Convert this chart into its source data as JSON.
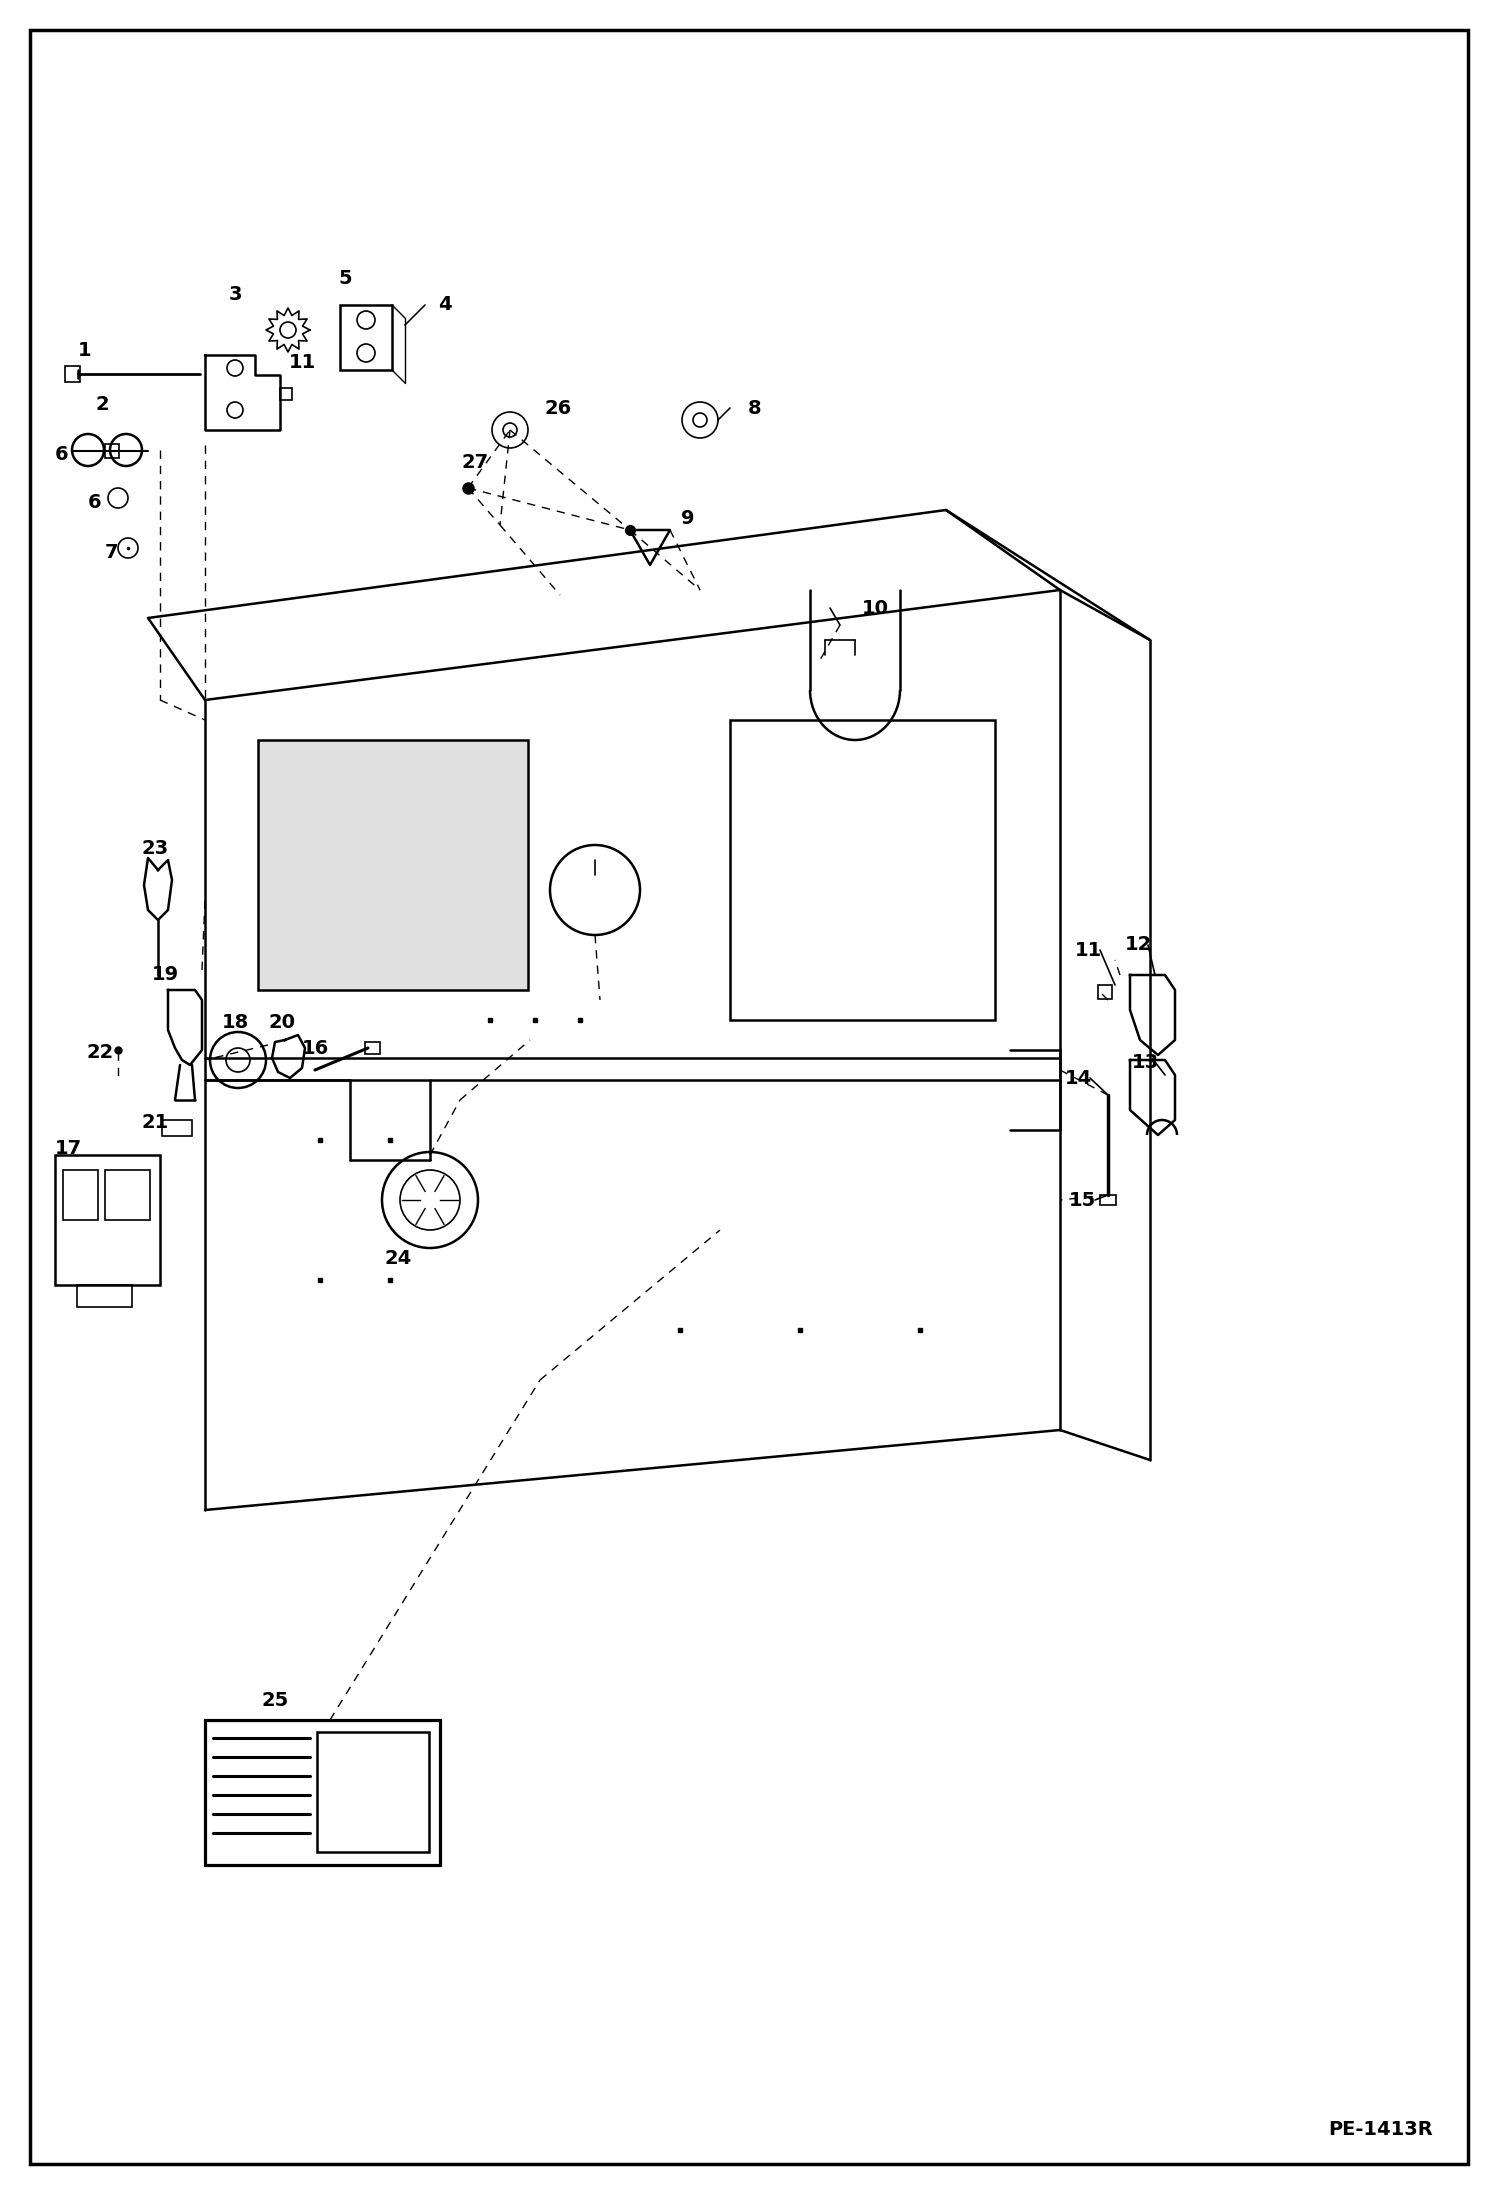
{
  "footer_code": "PE-1413R",
  "background_color": "#ffffff",
  "fig_width": 14.98,
  "fig_height": 21.94,
  "dpi": 100
}
